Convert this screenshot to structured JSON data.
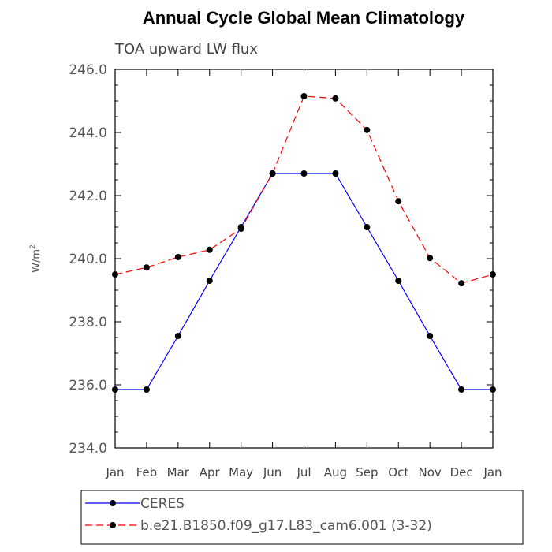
{
  "chart_data": {
    "type": "line",
    "title": "Annual Cycle Global Mean Climatology",
    "subtitle": "TOA upward LW flux",
    "ylabel": "W/m",
    "ylabel_sup": "2",
    "xlabel": "",
    "categories": [
      "Jan",
      "Feb",
      "Mar",
      "Apr",
      "May",
      "Jun",
      "Jul",
      "Aug",
      "Sep",
      "Oct",
      "Nov",
      "Dec",
      "Jan"
    ],
    "ylim": [
      234.0,
      246.0
    ],
    "yticks": [
      234.0,
      236.0,
      238.0,
      240.0,
      242.0,
      244.0,
      246.0
    ],
    "ytick_labels": [
      "234.0",
      "236.0",
      "238.0",
      "240.0",
      "242.0",
      "244.0",
      "246.0"
    ],
    "grid": false,
    "legend_position": "bottom",
    "series": [
      {
        "name": "CERES",
        "color": "#0000ff",
        "dash": "solid",
        "marker": "circle",
        "values": [
          235.85,
          235.85,
          237.55,
          239.3,
          241.0,
          242.7,
          242.7,
          242.7,
          241.0,
          239.3,
          237.55,
          235.85,
          235.85
        ]
      },
      {
        "name": "b.e21.B1850.f09_g17.L83_cam6.001 (3-32)",
        "color": "#ff0000",
        "dash": "dashed",
        "marker": "circle",
        "values": [
          239.5,
          239.72,
          240.05,
          240.28,
          240.95,
          242.7,
          245.15,
          245.08,
          244.08,
          241.82,
          240.02,
          239.22,
          239.5
        ]
      }
    ]
  }
}
